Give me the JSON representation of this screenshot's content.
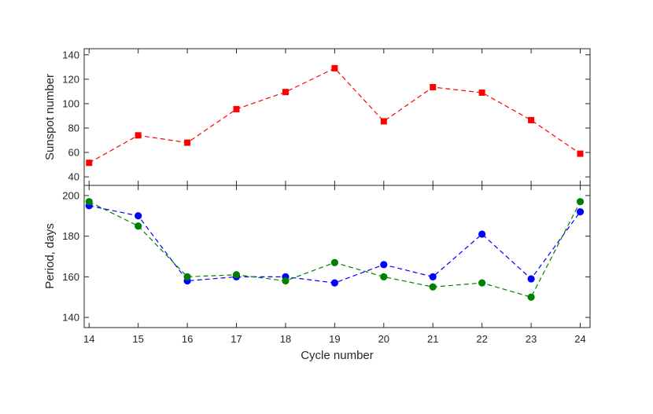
{
  "chart_data": [
    {
      "type": "line",
      "panel": "top",
      "xlabel": "",
      "ylabel": "Sunspot number",
      "xlim": [
        13.9,
        24.2
      ],
      "ylim": [
        33,
        145
      ],
      "yticks": [
        40,
        60,
        80,
        100,
        120,
        140
      ],
      "x": [
        14,
        15,
        16,
        17,
        18,
        19,
        20,
        21,
        22,
        23,
        24
      ],
      "series": [
        {
          "color": "#ff0000",
          "marker": "square",
          "line_style": "dashed",
          "values": [
            51.5,
            74,
            68,
            95.5,
            109.5,
            129,
            85.5,
            113.5,
            109,
            86.5,
            59
          ]
        }
      ],
      "grid": false,
      "legend": "none"
    },
    {
      "type": "line",
      "panel": "bottom",
      "xlabel": "Cycle number",
      "ylabel": "Period, days",
      "xlim": [
        13.9,
        24.2
      ],
      "ylim": [
        135,
        205
      ],
      "xticks": [
        14,
        15,
        16,
        17,
        18,
        19,
        20,
        21,
        22,
        23,
        24
      ],
      "yticks": [
        140,
        160,
        180,
        200
      ],
      "x": [
        14,
        15,
        16,
        17,
        18,
        19,
        20,
        21,
        22,
        23,
        24
      ],
      "series": [
        {
          "color": "#0000ff",
          "marker": "circle",
          "line_style": "dashed",
          "values": [
            195,
            190,
            158,
            160,
            160,
            157,
            166,
            160,
            181,
            159,
            192
          ]
        },
        {
          "color": "#008000",
          "marker": "circle",
          "line_style": "dashed",
          "values": [
            197,
            185,
            160,
            161,
            158,
            167,
            160,
            155,
            157,
            150,
            197
          ]
        }
      ],
      "grid": false,
      "legend": "none"
    }
  ]
}
